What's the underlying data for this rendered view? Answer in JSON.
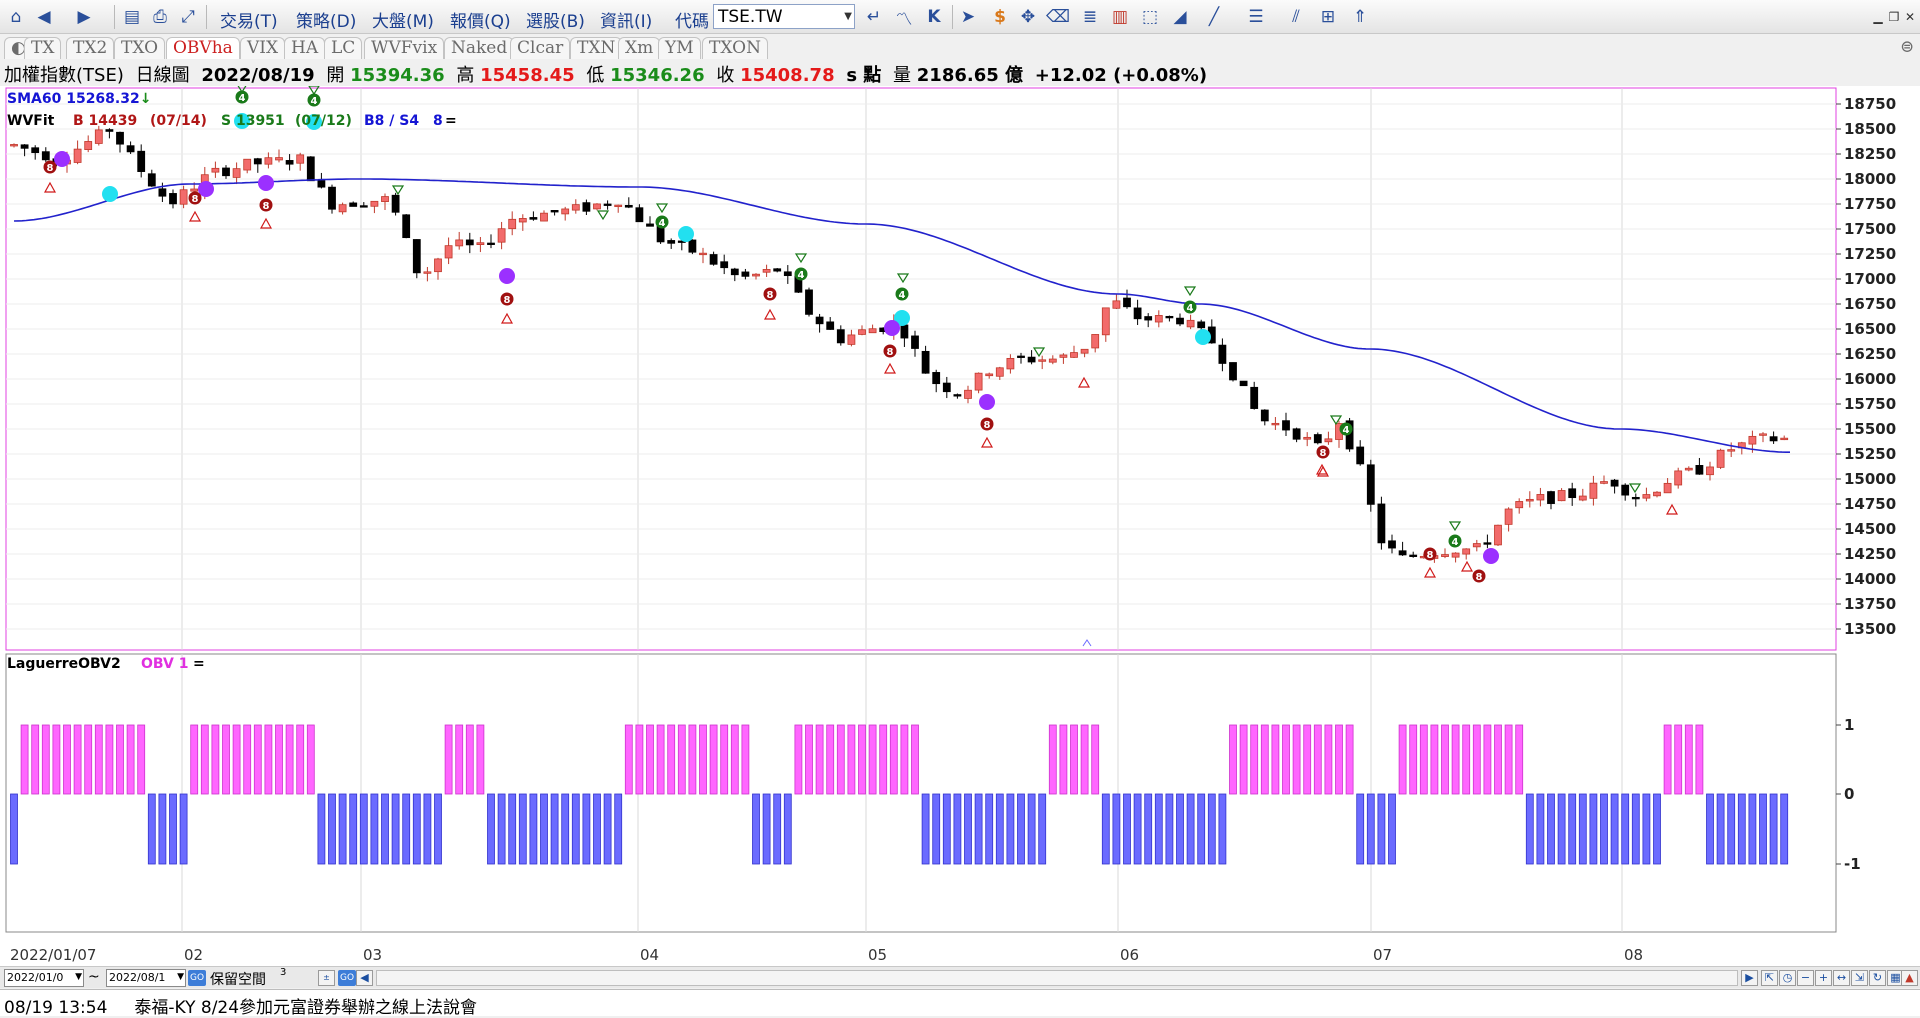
{
  "toolbar": {
    "menus": [
      "交易(T)",
      "策略(D)",
      "大盤(M)",
      "報價(Q)",
      "選股(B)",
      "資訊(I)"
    ],
    "code_label": "代碼",
    "symbol_value": "TSE.TW",
    "icons": [
      "home-icon",
      "back-icon",
      "forward-icon",
      "folder-icon",
      "print-icon",
      "resize-icon",
      "return-icon",
      "line-chart-icon",
      "k-chart-icon",
      "pointer-icon",
      "dollar-icon",
      "move-icon",
      "eraser-icon",
      "notes-icon",
      "bar-tool-icon",
      "box-tool-icon",
      "shape-icon",
      "pen-icon",
      "levels-icon",
      "fan-icon",
      "export-icon"
    ]
  },
  "tabs": [
    "TX",
    "TX2",
    "TXO",
    "OBVha",
    "VIX",
    "HA",
    "LC",
    "WVFvix",
    "Naked",
    "Clcar",
    "TXN",
    "Xm",
    "YM",
    "TXON"
  ],
  "active_tab": "OBVha",
  "quote": {
    "name": "加權指數(TSE)",
    "period": "日線圖",
    "date": "2022/08/19",
    "open_label": "開",
    "open": "15394.36",
    "high_label": "高",
    "high": "15458.45",
    "low_label": "低",
    "low": "15346.26",
    "close_label": "收",
    "close": "15408.78",
    "unit": "s 點",
    "volume_label": "量",
    "volume": "2186.65 億",
    "change": "+12.02 (+0.08%)"
  },
  "main_legend": {
    "sma": "SMA60 15268.32",
    "sma_arrow": "↓",
    "wvf": "WVFit",
    "b": "B 14439",
    "b_date": "(07/14)",
    "s": "S 13951",
    "s_date": "(07/12)",
    "bs": "B8 / S4",
    "n": "8",
    "eq": "="
  },
  "sub_legend": {
    "name": "LaguerreOBV2",
    "obv": "OBV 1",
    "eq": "="
  },
  "price_axis": [
    "18750",
    "18500",
    "18250",
    "18000",
    "17750",
    "17500",
    "17250",
    "17000",
    "16750",
    "16500",
    "16250",
    "16000",
    "15750",
    "15500",
    "15250",
    "15000",
    "14750",
    "14500",
    "14250",
    "14000",
    "13750",
    "13500"
  ],
  "sub_axis": [
    "1",
    "0",
    "-1"
  ],
  "date_axis": [
    "2022/01/07",
    "02",
    "03",
    "04",
    "05",
    "06",
    "07",
    "08"
  ],
  "range_bar": {
    "start": "2022/01/0",
    "tilde": "~",
    "end": "2022/08/1",
    "reserve_label": "保留空間",
    "reserve_value": "3",
    "go": "GO"
  },
  "ticker": {
    "time": "08/19 13:54",
    "headline": "泰福-KY 8/24參加元富證券舉辦之線上法說會"
  },
  "chart_data": {
    "type": "candlestick",
    "series": [
      {
        "name": "SMA60",
        "x": [
          "2022/01/07",
          "2022/02/07",
          "2022/03/01",
          "2022/04/01",
          "2022/05/02",
          "2022/06/01",
          "2022/06/22",
          "2022/07/01",
          "2022/08/01",
          "2022/08/19"
        ],
        "y": [
          17580,
          17950,
          18000,
          17920,
          17550,
          16850,
          16750,
          16500,
          15500,
          15268
        ]
      }
    ],
    "ohlc_sample_last": {
      "open": 15394.36,
      "high": 15458.45,
      "low": 15346.26,
      "close": 15408.78
    },
    "obv_signal": "LaguerreOBV2 values in {1, 0, -1}",
    "ylim": [
      13400,
      18850
    ],
    "colors": {
      "up": "#f26b6b",
      "down": "#000000",
      "sma": "#2222cc",
      "obv_up": "#ff66ff",
      "obv_down": "#6b6bff"
    }
  }
}
